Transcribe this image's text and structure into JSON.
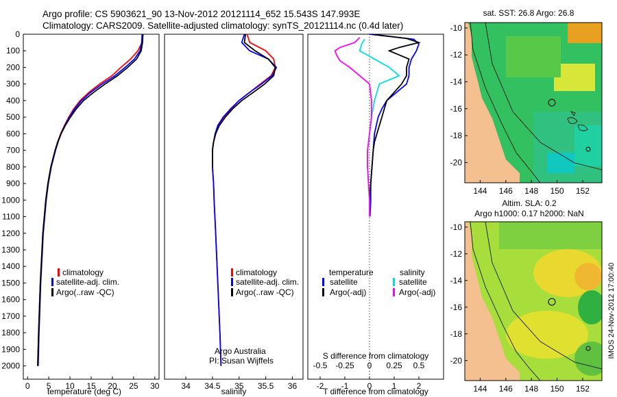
{
  "header": {
    "line1": "Argo profile: CS 5903621_90 13-Nov-2012 20121114_652 15.543S 147.993E",
    "line2": "Climatology: CARS2009. Satellite-adjusted climatology: synTS_20121114.nc (0.4d later)"
  },
  "colors": {
    "climatology": "#ff0000",
    "satellite": "#0000ff",
    "argo": "#000000",
    "salinity_satellite": "#00e0e0",
    "salinity_argo": "#ff00ff",
    "land": "#f5c08f"
  },
  "chart_data": [
    {
      "type": "line",
      "id": "temperature",
      "xlabel": "temperature (deg C)",
      "ylabel": "",
      "xlim": [
        -1,
        31
      ],
      "ylim": [
        0,
        2080
      ],
      "xticks": [
        0,
        5,
        10,
        15,
        20,
        25,
        30
      ],
      "yticks": [
        0,
        100,
        200,
        300,
        400,
        500,
        600,
        700,
        800,
        900,
        1000,
        1100,
        1200,
        1300,
        1400,
        1500,
        1600,
        1700,
        1800,
        1900,
        2000
      ],
      "legend": [
        "climatology",
        "satellite-adj. clim.",
        "Argo(..raw -QC)"
      ],
      "series": [
        {
          "name": "climatology",
          "color": "#ff0000",
          "depth": [
            0,
            50,
            100,
            150,
            200,
            250,
            300,
            350,
            400,
            450,
            500,
            550,
            600,
            650,
            700,
            750,
            800,
            900,
            1000,
            1200,
            1500,
            1800,
            2000
          ],
          "values": [
            27.1,
            27.0,
            26.0,
            24.3,
            22.0,
            19.9,
            17.0,
            14.5,
            12.4,
            10.9,
            9.7,
            8.7,
            7.8,
            7.1,
            6.5,
            6.0,
            5.5,
            4.8,
            4.3,
            3.6,
            3.0,
            2.6,
            2.4
          ]
        },
        {
          "name": "satellite-adj. clim.",
          "color": "#0000ff",
          "depth": [
            0,
            50,
            100,
            150,
            200,
            250,
            300,
            350,
            400,
            450,
            500,
            550,
            600,
            650,
            700,
            750,
            800,
            900,
            1000,
            1200,
            1500,
            1800,
            2000
          ],
          "values": [
            27.0,
            26.9,
            26.5,
            25.2,
            23.0,
            20.6,
            17.6,
            14.9,
            12.7,
            11.1,
            9.9,
            8.8,
            7.9,
            7.2,
            6.6,
            6.1,
            5.6,
            4.9,
            4.4,
            3.7,
            3.1,
            2.7,
            2.5
          ]
        },
        {
          "name": "Argo(..raw -QC)",
          "color": "#000000",
          "depth": [
            0,
            50,
            100,
            150,
            200,
            250,
            300,
            350,
            400,
            450,
            500,
            550,
            600,
            650,
            700,
            750,
            800,
            900,
            1000,
            1200,
            1500,
            1800,
            2000
          ],
          "values": [
            27.2,
            27.1,
            26.8,
            25.7,
            23.6,
            21.2,
            18.3,
            15.6,
            13.2,
            11.5,
            10.1,
            8.9,
            7.9,
            7.1,
            6.5,
            6.0,
            5.5,
            4.8,
            4.3,
            3.6,
            3.0,
            2.6,
            2.4
          ]
        }
      ]
    },
    {
      "type": "line",
      "id": "salinity",
      "xlabel": "salinity",
      "xlim": [
        33.6,
        36.2
      ],
      "ylim": [
        0,
        2080
      ],
      "xticks": [
        34,
        34.5,
        35,
        35.5,
        36
      ],
      "legend": [
        "climatology",
        "satellite-adj. clim.",
        "Argo(..raw -QC)"
      ],
      "annotation": [
        "Argo Australia",
        "PI: Susan Wijffels"
      ],
      "series": [
        {
          "name": "climatology",
          "color": "#ff0000",
          "depth": [
            0,
            50,
            100,
            150,
            200,
            250,
            300,
            350,
            400,
            450,
            500,
            550,
            600,
            650,
            700,
            800,
            900,
            1000,
            1200,
            1500,
            1800,
            2000
          ],
          "values": [
            35.15,
            35.2,
            35.5,
            35.65,
            35.68,
            35.6,
            35.4,
            35.2,
            35.0,
            34.85,
            34.72,
            34.62,
            34.56,
            34.52,
            34.5,
            34.5,
            34.52,
            34.53,
            34.56,
            34.6,
            34.64,
            34.66
          ]
        },
        {
          "name": "satellite-adj. clim.",
          "color": "#0000ff",
          "depth": [
            0,
            50,
            100,
            150,
            200,
            250,
            300,
            350,
            400,
            450,
            500,
            550,
            600,
            650,
            700,
            800,
            900,
            1000,
            1200,
            1500,
            1800,
            2000
          ],
          "values": [
            35.1,
            35.05,
            35.2,
            35.55,
            35.7,
            35.62,
            35.42,
            35.2,
            35.0,
            34.84,
            34.7,
            34.6,
            34.55,
            34.52,
            34.5,
            34.5,
            34.52,
            34.53,
            34.56,
            34.6,
            34.64,
            34.66
          ]
        },
        {
          "name": "Argo(..raw -QC)",
          "color": "#000000",
          "depth": [
            0,
            50,
            100,
            150,
            200,
            250,
            300,
            350,
            400,
            450,
            500,
            550,
            600,
            650,
            700,
            750,
            800
          ],
          "values": [
            35.12,
            35.1,
            35.3,
            35.55,
            35.68,
            35.65,
            35.48,
            35.27,
            35.05,
            34.88,
            34.74,
            34.63,
            34.56,
            34.52,
            34.5,
            34.5,
            34.5
          ]
        }
      ]
    },
    {
      "type": "line",
      "id": "differences",
      "xlabel": "T difference from climatology",
      "xlabel2": "S difference from climatology",
      "xlim": [
        -2.5,
        3
      ],
      "ylim": [
        0,
        2080
      ],
      "xticks": [
        -2,
        -1,
        0,
        1,
        2
      ],
      "xticks2": [
        -0.5,
        -0.25,
        0,
        0.25,
        0.5
      ],
      "legend_temperature_title": "temperature",
      "legend_salinity_title": "salinity",
      "legend": [
        "satellite",
        "Argo(-adj)",
        "satellite",
        "Argo(-adj)"
      ],
      "series": [
        {
          "name": "T satellite",
          "color": "#0000ff",
          "depth": [
            0,
            30,
            60,
            100,
            150,
            200,
            250,
            300,
            350,
            400,
            450,
            500,
            600,
            700,
            800,
            900,
            1000,
            1100
          ],
          "values": [
            0.0,
            1.8,
            2.0,
            1.9,
            1.7,
            1.6,
            1.6,
            1.5,
            1.1,
            0.7,
            0.5,
            0.35,
            0.2,
            0.15,
            0.1,
            0.05,
            0.05,
            0.02
          ]
        },
        {
          "name": "T Argo(-adj)",
          "color": "#000000",
          "depth": [
            0,
            25,
            50,
            80,
            100,
            150,
            200,
            250,
            300,
            350,
            400,
            450,
            500,
            550,
            600,
            650,
            700,
            800,
            900,
            1000,
            1100
          ],
          "values": [
            0.1,
            1.5,
            2.0,
            1.2,
            0.8,
            1.6,
            1.5,
            1.5,
            1.3,
            1.0,
            0.7,
            0.6,
            0.5,
            0.4,
            0.3,
            0.2,
            0.15,
            0.1,
            0.05,
            0.0,
            0.0
          ]
        },
        {
          "name": "S satellite",
          "color": "#00e0e0",
          "depth": [
            30,
            60,
            100,
            150,
            200,
            250,
            300,
            400,
            500,
            600,
            700,
            800,
            1000,
            1100
          ],
          "values": [
            -0.05,
            -0.08,
            -0.1,
            0.05,
            0.2,
            0.3,
            0.1,
            0.05,
            0.02,
            0.0,
            -0.02,
            -0.02,
            0.0,
            0.0
          ]
        },
        {
          "name": "S Argo(-adj)",
          "color": "#ff00ff",
          "depth": [
            20,
            50,
            80,
            100,
            130,
            160,
            200,
            300,
            400,
            500,
            600,
            700,
            800,
            1000,
            1100
          ],
          "values": [
            -0.1,
            -0.15,
            -0.3,
            -0.35,
            -0.33,
            -0.3,
            -0.2,
            0.0,
            0.02,
            0.02,
            0.0,
            -0.02,
            -0.02,
            0.0,
            0.0
          ]
        }
      ]
    }
  ],
  "maps": {
    "sst": {
      "title": "sat. SST: 26.8 Argo: 26.8"
    },
    "sla": {
      "title1": "Altim. SLA: 0.2",
      "title2": "Argo h1000: 0.17 h2000: NaN"
    },
    "lat_ticks": [
      -10,
      -12,
      -14,
      -16,
      -18,
      -20
    ],
    "lon_ticks": [
      144,
      146,
      148,
      150,
      152
    ]
  },
  "credit": "IMOS 24-Nov-2012 17:00:40"
}
